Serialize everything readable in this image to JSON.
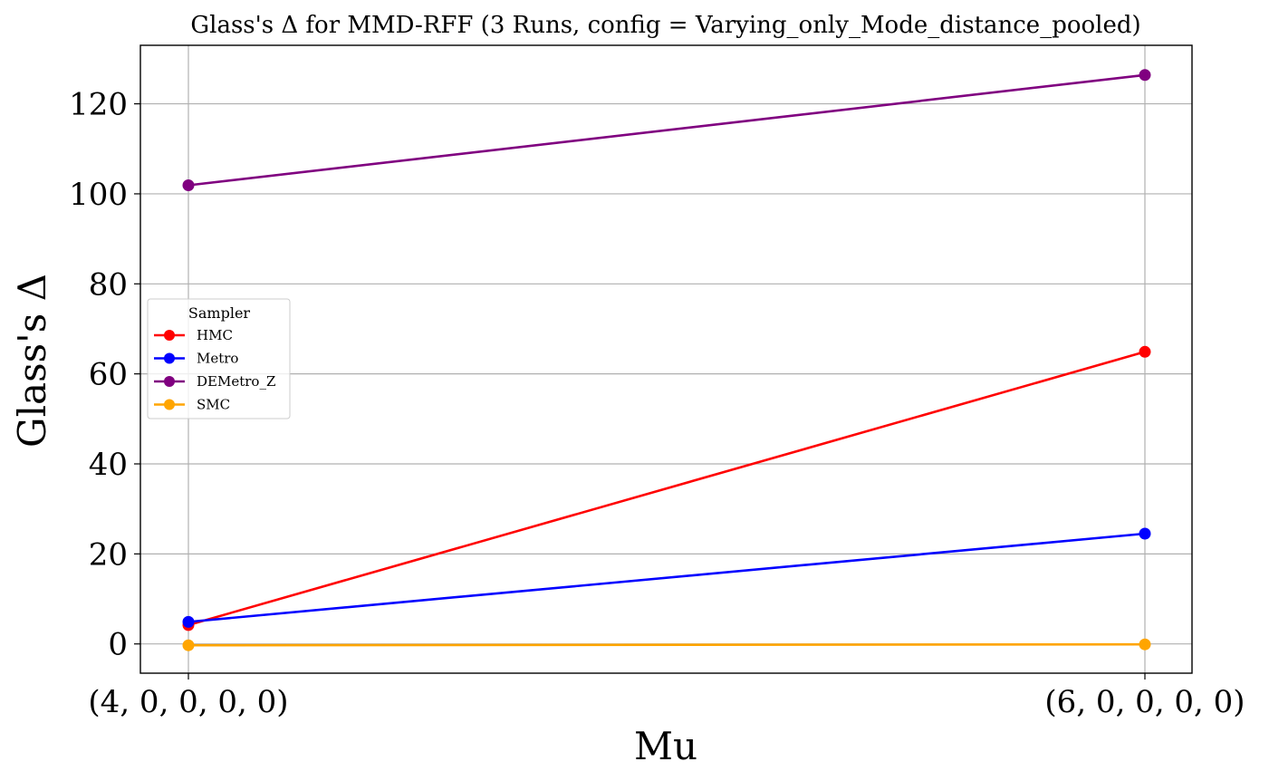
{
  "chart_data": {
    "type": "line",
    "title": "Glass's Δ for MMD-RFF (3 Runs, config = Varying_only_Mode_distance_pooled)",
    "xlabel": "Mu",
    "ylabel": "Glass's Δ",
    "categories": [
      "(4, 0, 0, 0, 0)",
      "(6, 0, 0, 0, 0)"
    ],
    "ylim": [
      -6.5,
      133
    ],
    "yticks": [
      0,
      20,
      40,
      60,
      80,
      100,
      120
    ],
    "grid": true,
    "legend": {
      "title": "Sampler",
      "placement": "center-left"
    },
    "series": [
      {
        "name": "HMC",
        "color": "#ff0000",
        "values": [
          4.2,
          64.9
        ]
      },
      {
        "name": "Metro",
        "color": "#0000ff",
        "values": [
          4.9,
          24.5
        ]
      },
      {
        "name": "DEMetro_Z",
        "color": "#800080",
        "values": [
          101.9,
          126.4
        ]
      },
      {
        "name": "SMC",
        "color": "#ffa500",
        "values": [
          -0.3,
          -0.1
        ]
      }
    ]
  }
}
